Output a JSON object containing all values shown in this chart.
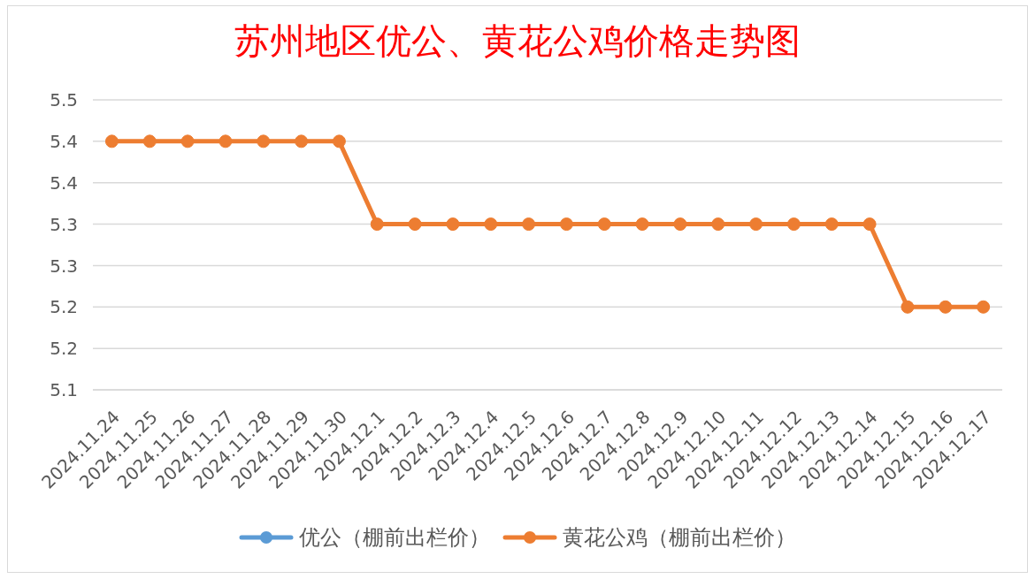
{
  "chart_data": {
    "type": "line",
    "title": "苏州地区优公、黄花公鸡价格走势图",
    "categories": [
      "2024.11.24",
      "2024.11.25",
      "2024.11.26",
      "2024.11.27",
      "2024.11.28",
      "2024.11.29",
      "2024.11.30",
      "2024.12.1",
      "2024.12.2",
      "2024.12.3",
      "2024.12.4",
      "2024.12.5",
      "2024.12.6",
      "2024.12.7",
      "2024.12.8",
      "2024.12.9",
      "2024.12.10",
      "2024.12.11",
      "2024.12.12",
      "2024.12.13",
      "2024.12.14",
      "2024.12.15",
      "2024.12.16",
      "2024.12.17"
    ],
    "series": [
      {
        "name": "优公（棚前出栏价）",
        "color": "#5b9bd5",
        "values": [
          null,
          null,
          null,
          null,
          null,
          null,
          null,
          null,
          null,
          null,
          null,
          null,
          null,
          null,
          null,
          null,
          null,
          null,
          null,
          null,
          null,
          null,
          null,
          null
        ]
      },
      {
        "name": "黄花公鸡（棚前出栏价）",
        "color": "#ed7d31",
        "values": [
          5.4,
          5.4,
          5.4,
          5.4,
          5.4,
          5.4,
          5.4,
          5.3,
          5.3,
          5.3,
          5.3,
          5.3,
          5.3,
          5.3,
          5.3,
          5.3,
          5.3,
          5.3,
          5.3,
          5.3,
          5.3,
          5.2,
          5.2,
          5.2
        ]
      }
    ],
    "ylim": [
      5.1,
      5.45
    ],
    "yticks": [
      5.1,
      {
        "value": 5.15,
        "label": "5.2"
      },
      5.2,
      {
        "value": 5.25,
        "label": "5.3"
      },
      5.3,
      {
        "value": 5.35,
        "label": "5.4"
      },
      5.4,
      {
        "value": 5.45,
        "label": "5.5"
      }
    ],
    "grid": "y",
    "legend": "bottom",
    "marker": "circle",
    "line_style": "solid"
  }
}
